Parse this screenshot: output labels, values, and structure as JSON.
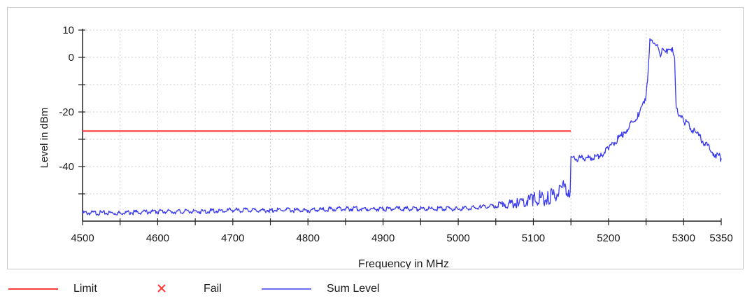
{
  "chart_data": {
    "type": "line",
    "title": "",
    "xlabel": "Frequency in MHz",
    "ylabel": "Level in dBm",
    "xlim": [
      4500,
      5350
    ],
    "ylim": [
      -60,
      10
    ],
    "x_ticks": [
      4500,
      4600,
      4700,
      4800,
      4900,
      5000,
      5100,
      5200,
      5300,
      5350
    ],
    "x_tick_labels": [
      "4500",
      "4600",
      "4700",
      "4800",
      "4900",
      "5000",
      "5100",
      "5200",
      "5300",
      "5350"
    ],
    "y_ticks": [
      10,
      0,
      -20,
      -40
    ],
    "y_tick_labels": [
      "10",
      "0",
      "-20",
      "-40"
    ],
    "grid": true,
    "legend_position": "bottom",
    "series": [
      {
        "name": "Limit",
        "color": "#ff3b3b",
        "x": [
          4500,
          5150
        ],
        "y": [
          -27,
          -27
        ]
      },
      {
        "name": "Sum Level",
        "color": "#3a3af0",
        "x": [
          4500,
          4550,
          4600,
          4650,
          4700,
          4750,
          4800,
          4850,
          4900,
          4950,
          5000,
          5030,
          5060,
          5080,
          5100,
          5120,
          5140,
          5149,
          5150,
          5155,
          5170,
          5190,
          5200,
          5220,
          5240,
          5250,
          5252,
          5255,
          5265,
          5270,
          5272,
          5278,
          5285,
          5288,
          5290,
          5300,
          5320,
          5340,
          5350
        ],
        "y": [
          -57,
          -57,
          -56.5,
          -56.5,
          -56,
          -56,
          -56,
          -55.5,
          -55.5,
          -55.5,
          -55.5,
          -55,
          -54,
          -53,
          -52,
          -51,
          -49,
          -48,
          -37,
          -37,
          -37,
          -36,
          -33,
          -28,
          -21,
          -14,
          -8,
          6,
          5,
          0,
          4,
          2,
          3,
          0,
          -19,
          -23,
          -29,
          -35,
          -37
        ]
      }
    ],
    "legend": [
      {
        "label": "Limit",
        "color": "#ff3b3b",
        "marker": "line"
      },
      {
        "label": "Fail",
        "color": "#ff3b3b",
        "marker": "x"
      },
      {
        "label": "Sum Level",
        "color": "#6e6ef5",
        "marker": "line"
      }
    ]
  }
}
